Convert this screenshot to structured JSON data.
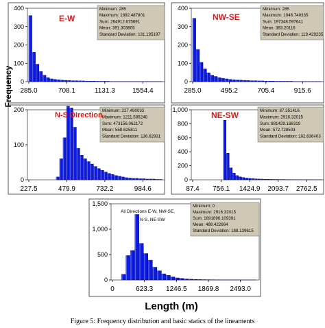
{
  "figure": {
    "ylabel": "Frequency",
    "xlabel": "Length (m)",
    "caption": "Figure 5: Frequency distribution and basic statics of the lineaments"
  },
  "colors": {
    "bar": "#0a1ae0",
    "barDark": "#000080",
    "barLight": "#6f7bff",
    "statsBox": "#cfc8b4",
    "title": "#e01818"
  },
  "chart_data": [
    {
      "type": "bar",
      "title": "E-W",
      "ylim": [
        0,
        400
      ],
      "yticks": [
        "0",
        "100",
        "200",
        "300",
        "400"
      ],
      "xticks": [
        "285.0",
        "708.1",
        "1131.3",
        "1554.4"
      ],
      "xrange": [
        285.0,
        1892.48
      ],
      "bin_width": 42.3,
      "values": [
        360,
        160,
        95,
        55,
        35,
        22,
        15,
        12,
        10,
        8,
        7,
        6,
        5,
        5,
        4,
        4,
        3,
        3,
        3,
        2,
        2,
        2,
        2,
        1,
        1,
        1,
        1,
        1,
        1,
        1,
        1,
        1,
        1,
        1,
        1,
        1,
        1,
        1
      ],
      "stats_lines": [
        "Minimum: 285",
        "Maximum: 1892.487801",
        "Sum: 264912.675691",
        "Mean: 391.303805",
        "Standard Deviation: 131.195197"
      ]
    },
    {
      "type": "bar",
      "title": "NW-SE",
      "ylim": [
        0,
        400
      ],
      "yticks": [
        "0",
        "100",
        "200",
        "300",
        "400"
      ],
      "xticks": [
        "285.0",
        "495.2",
        "705.4",
        "915.6"
      ],
      "xrange": [
        285.0,
        1046.75
      ],
      "bin_width": 21.0,
      "values": [
        345,
        175,
        105,
        70,
        48,
        35,
        28,
        22,
        18,
        15,
        12,
        10,
        9,
        8,
        7,
        6,
        5,
        5,
        4,
        4,
        3,
        3,
        3,
        2,
        2,
        2,
        2,
        2,
        1,
        1,
        1,
        1,
        1,
        1,
        1,
        1
      ],
      "stats_lines": [
        "Minimum: 285",
        "Maximum: 1046.749335",
        "Sum: 197348.597641",
        "Mean: 383.20116",
        "Standard Deviation: 119.429235"
      ]
    },
    {
      "type": "bar",
      "title": "N-S Direction",
      "ylim": [
        0,
        200
      ],
      "yticks": [
        "0",
        "100",
        "200"
      ],
      "xticks": [
        "227.5",
        "479.9",
        "732.2",
        "984.6"
      ],
      "xrange": [
        227.49,
        1211.59
      ],
      "bin_width": 25.2,
      "values": [
        0,
        0,
        0,
        0,
        0,
        0,
        0,
        0,
        8,
        60,
        120,
        210,
        205,
        150,
        90,
        70,
        60,
        52,
        45,
        38,
        32,
        27,
        22,
        18,
        15,
        12,
        10,
        8,
        6,
        5,
        4,
        4,
        3,
        3,
        2,
        2,
        2,
        1,
        1
      ],
      "stats_lines": [
        "Minimum: 227.490033",
        "Maximum: 1211.585248",
        "Sum: 473156.062172",
        "Mean: 558.625811",
        "Standard Deviation: 136.62931"
      ]
    },
    {
      "type": "bar",
      "title": "NE-SW",
      "ylim": [
        0,
        1000
      ],
      "yticks": [
        "0",
        "200",
        "400",
        "600",
        "800",
        "1,000"
      ],
      "xticks": [
        "87.4",
        "756.1",
        "1424.9",
        "2093.7",
        "2762.5"
      ],
      "xrange": [
        87.35,
        2916.32
      ],
      "bin_width": 66.9,
      "values": [
        0,
        0,
        0,
        0,
        0,
        0,
        0,
        0,
        0,
        0,
        850,
        380,
        170,
        95,
        60,
        42,
        32,
        25,
        20,
        16,
        13,
        11,
        10,
        8,
        7,
        6,
        5,
        5,
        4,
        4,
        3,
        3,
        3,
        2,
        2,
        2,
        2,
        2,
        1,
        1,
        1,
        1
      ],
      "stats_lines": [
        "Minimum: 87.351416",
        "Maximum: 2916.32015",
        "Sum: 881429.166319",
        "Mean: 572.728503",
        "Standard Deviation: 192.636403"
      ]
    },
    {
      "type": "bar",
      "title_lines": [
        "All  Directions E-W, NW-SE,",
        "N-S, NE-SW"
      ],
      "ylim": [
        0,
        1500
      ],
      "yticks": [
        "0",
        "500",
        "1,000",
        "1,500"
      ],
      "xticks": [
        "0",
        "623.3",
        "1246.5",
        "1869.8",
        "2493.0"
      ],
      "xrange": [
        0,
        2916.32
      ],
      "bin_width": 90,
      "values": [
        0,
        0,
        110,
        480,
        580,
        1290,
        720,
        520,
        390,
        250,
        180,
        120,
        90,
        60,
        40,
        30,
        20,
        15,
        10,
        8,
        6,
        5,
        4,
        3,
        3,
        2,
        2,
        2,
        1,
        1,
        1,
        1
      ],
      "stats_lines": [
        "Minimum: 0",
        "Maximum: 2916.32015",
        "Sum: 1691896.109391",
        "Mean: 488.422664",
        "Standard Deviation: 188.139615"
      ]
    }
  ]
}
